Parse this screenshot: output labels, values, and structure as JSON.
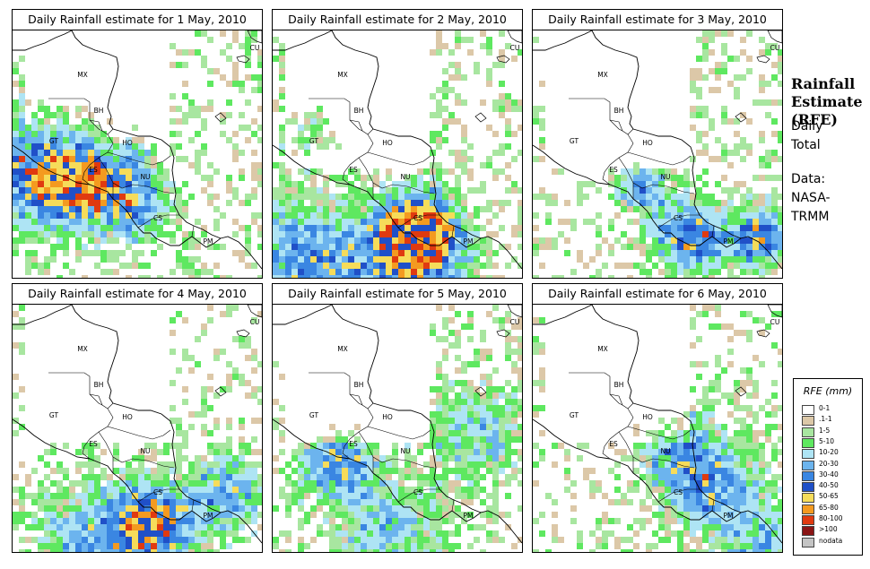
{
  "panels": [
    {
      "title": "Daily Rainfall estimate for  1 May, 2010",
      "seed": 11,
      "blobs": [
        [
          0.12,
          0.55,
          0.22,
          3.4
        ],
        [
          0.3,
          0.6,
          0.16,
          2.8
        ],
        [
          0.5,
          0.5,
          0.1,
          1.8
        ],
        [
          0.5,
          0.72,
          0.12,
          1.9
        ]
      ]
    },
    {
      "title": "Daily Rainfall estimate for  2 May, 2010",
      "seed": 23,
      "blobs": [
        [
          0.58,
          0.8,
          0.14,
          4.2
        ],
        [
          0.5,
          0.95,
          0.25,
          2.6
        ],
        [
          0.1,
          0.9,
          0.2,
          2.2
        ],
        [
          0.15,
          0.4,
          0.12,
          1.6
        ]
      ]
    },
    {
      "title": "Daily Rainfall estimate for  3 May, 2010",
      "seed": 37,
      "blobs": [
        [
          0.62,
          0.82,
          0.14,
          3.0
        ],
        [
          0.9,
          0.82,
          0.12,
          2.8
        ],
        [
          0.42,
          0.62,
          0.1,
          2.2
        ]
      ]
    },
    {
      "title": "Daily Rainfall estimate for  4 May, 2010",
      "seed": 41,
      "blobs": [
        [
          0.55,
          0.88,
          0.16,
          3.6
        ],
        [
          0.85,
          0.75,
          0.14,
          2.2
        ],
        [
          0.3,
          0.95,
          0.2,
          1.8
        ]
      ]
    },
    {
      "title": "Daily Rainfall estimate for  5 May, 2010",
      "seed": 53,
      "blobs": [
        [
          0.25,
          0.62,
          0.14,
          2.4
        ],
        [
          0.45,
          0.9,
          0.22,
          1.6
        ],
        [
          0.8,
          0.5,
          0.2,
          1.4
        ]
      ]
    },
    {
      "title": "Daily Rainfall estimate for  6 May, 2010",
      "seed": 67,
      "blobs": [
        [
          0.7,
          0.72,
          0.18,
          2.4
        ],
        [
          0.55,
          0.55,
          0.15,
          1.6
        ],
        [
          0.9,
          0.95,
          0.15,
          1.6
        ]
      ]
    }
  ],
  "country_labels": [
    "MX",
    "BH",
    "GT",
    "HO",
    "ES",
    "NU",
    "CS",
    "PM",
    "CU"
  ],
  "side": {
    "title": [
      "Rainfall",
      "Estimate",
      "(RFE)"
    ],
    "line1": "Daily",
    "line2": "Total",
    "line3": "Data:",
    "line4": "NASA-",
    "line5": "TRMM"
  },
  "legend": {
    "title": "RFE (mm)",
    "items": [
      {
        "label": "0-1",
        "color": "#ffffff"
      },
      {
        "label": ".1-1",
        "color": "#dcc8a8"
      },
      {
        "label": "1-5",
        "color": "#a8e6a0"
      },
      {
        "label": "5-10",
        "color": "#5ee860"
      },
      {
        "label": "10-20",
        "color": "#aee4f4"
      },
      {
        "label": "20-30",
        "color": "#6cb4ee"
      },
      {
        "label": "30-40",
        "color": "#3a86e2"
      },
      {
        "label": "40-50",
        "color": "#2050c8"
      },
      {
        "label": "50-65",
        "color": "#f6dc5a"
      },
      {
        "label": "65-80",
        "color": "#f49a20"
      },
      {
        "label": "80-100",
        "color": "#e03a10"
      },
      {
        "label": ">100",
        "color": "#8a1414"
      },
      {
        "label": "nodata",
        "color": "#c4c4c4"
      }
    ]
  }
}
